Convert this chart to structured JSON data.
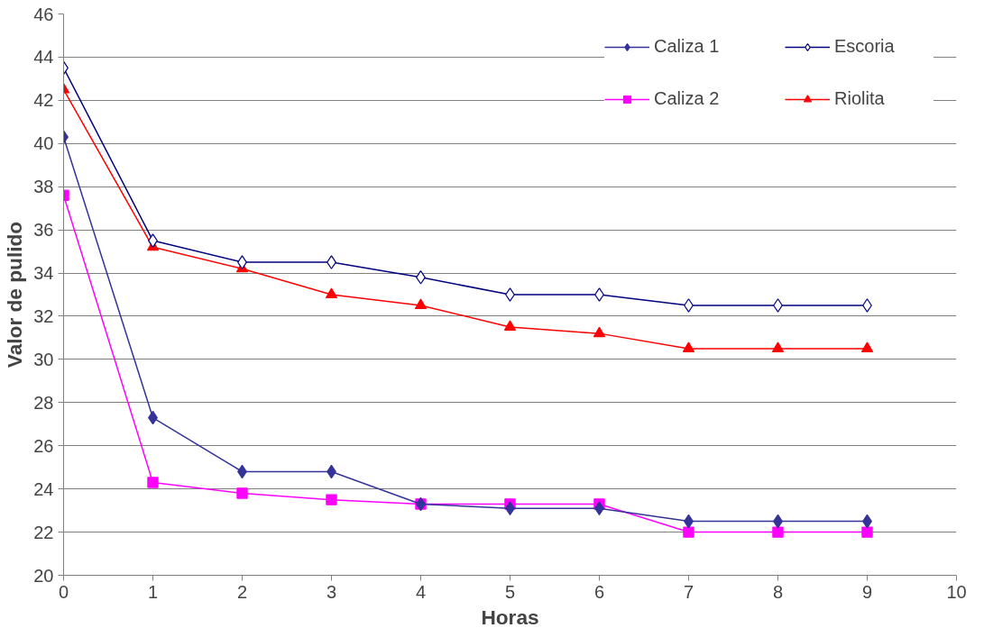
{
  "chart_data": {
    "type": "line",
    "xlabel": "Horas",
    "ylabel": "Valor de pulido",
    "x": [
      0,
      1,
      2,
      3,
      4,
      5,
      6,
      7,
      8,
      9
    ],
    "series": [
      {
        "name": "Caliza 1",
        "color": "#333399",
        "marker": "diamond",
        "values": [
          40.3,
          27.3,
          24.8,
          24.8,
          23.3,
          23.1,
          23.1,
          22.5,
          22.5,
          22.5
        ]
      },
      {
        "name": "Caliza 2",
        "color": "#ff00ff",
        "marker": "square",
        "values": [
          37.6,
          24.3,
          23.8,
          23.5,
          23.3,
          23.3,
          23.3,
          22.0,
          22.0,
          22.0
        ]
      },
      {
        "name": "Escoria",
        "color": "#000080",
        "marker": "diamond_open",
        "values": [
          43.5,
          35.5,
          34.5,
          34.5,
          33.8,
          33.0,
          33.0,
          32.5,
          32.5,
          32.5
        ]
      },
      {
        "name": "Riolita",
        "color": "#ff0000",
        "marker": "triangle",
        "values": [
          42.5,
          35.2,
          34.2,
          33.0,
          32.5,
          31.5,
          31.2,
          30.5,
          30.5,
          30.5
        ]
      }
    ],
    "xlim": [
      0,
      10
    ],
    "xticks": [
      0,
      1,
      2,
      3,
      4,
      5,
      6,
      7,
      8,
      9,
      10
    ],
    "ylim": [
      20,
      46
    ],
    "yticks": [
      20,
      22,
      24,
      26,
      28,
      30,
      32,
      34,
      36,
      38,
      40,
      42,
      44,
      46
    ],
    "grid": "y",
    "legend": "top right"
  }
}
